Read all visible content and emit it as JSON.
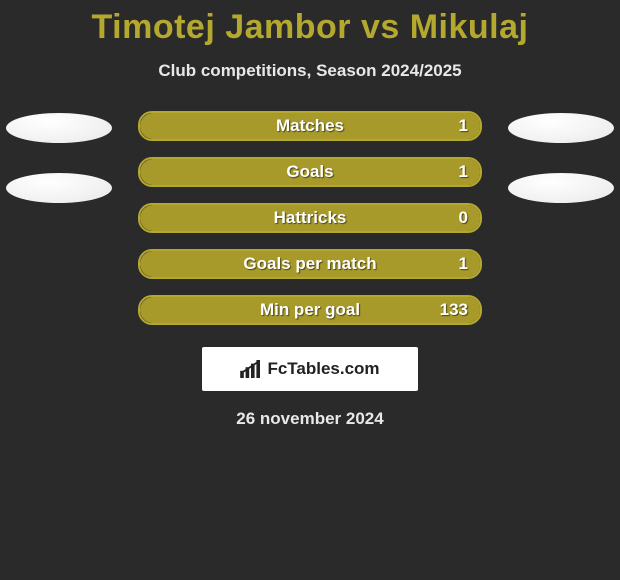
{
  "title": "Timotej Jambor vs Mikulaj",
  "subtitle": "Club competitions, Season 2024/2025",
  "brand": "FcTables.com",
  "date": "26 november 2024",
  "colors": {
    "title": "#b5a82f",
    "bar_border": "#b5a82f",
    "bar_fill": "#a79a2a",
    "background": "#2a2a2a",
    "text_light": "#e8e8e8",
    "avatar": "#f2f2f2"
  },
  "bars": [
    {
      "label": "Matches",
      "value": "1",
      "fill_pct": 100
    },
    {
      "label": "Goals",
      "value": "1",
      "fill_pct": 100
    },
    {
      "label": "Hattricks",
      "value": "0",
      "fill_pct": 100
    },
    {
      "label": "Goals per match",
      "value": "1",
      "fill_pct": 100
    },
    {
      "label": "Min per goal",
      "value": "133",
      "fill_pct": 100
    }
  ],
  "left_avatars": 2,
  "right_avatars": 2
}
